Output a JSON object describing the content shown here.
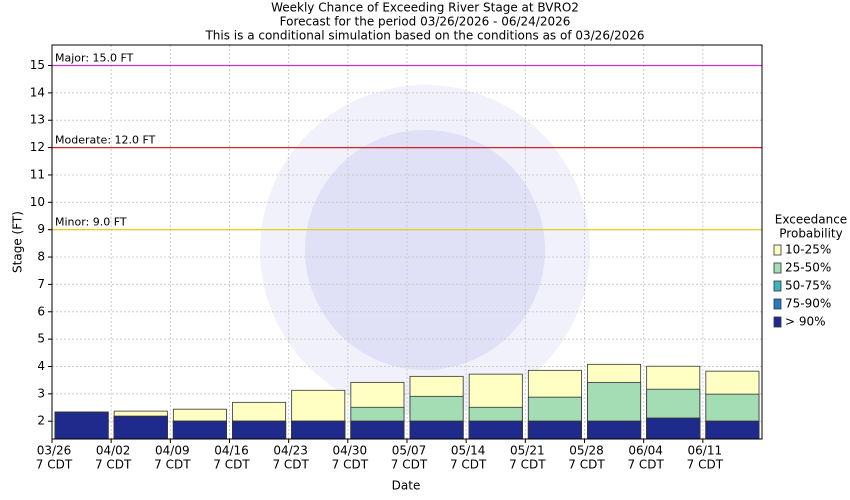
{
  "chart_data": {
    "type": "exceedance-bar",
    "title": "Weekly Chance of Exceeding River Stage at BVRO2",
    "subtitle": "Forecast for the period 03/26/2026 - 06/24/2026",
    "note": "This is a conditional simulation based on the conditions as of 03/26/2026",
    "x_label": "Date",
    "y_label": "Stage (FT)",
    "categories": [
      "03/26",
      "04/02",
      "04/09",
      "04/16",
      "04/23",
      "04/30",
      "05/07",
      "05/14",
      "05/21",
      "05/28",
      "06/04",
      "06/11"
    ],
    "category_sublabels": [
      "7 CDT",
      "7 CDT",
      "7 CDT",
      "7 CDT",
      "7 CDT",
      "7 CDT",
      "7 CDT",
      "7 CDT",
      "7 CDT",
      "7 CDT",
      "7 CDT",
      "7 CDT"
    ],
    "ylim": [
      1.35,
      15.75
    ],
    "yticks": [
      2,
      3,
      4,
      5,
      6,
      7,
      8,
      9,
      10,
      11,
      12,
      13,
      14,
      15
    ],
    "grid": true,
    "legend_title": [
      "Exceedance",
      "Probability"
    ],
    "series": [
      {
        "name": "10-25%",
        "color": "#ffffc4",
        "values": [
          2.33,
          2.37,
          2.44,
          2.69,
          3.13,
          3.42,
          3.64,
          3.72,
          3.86,
          4.08,
          4.01,
          3.83
        ]
      },
      {
        "name": "25-50%",
        "color": "#a4dcb4",
        "values": [
          2.33,
          2.18,
          2.0,
          2.0,
          2.0,
          2.51,
          2.91,
          2.51,
          2.88,
          3.42,
          3.17,
          2.99
        ]
      },
      {
        "name": "50-75%",
        "color": "#3cb4c4",
        "values": [
          2.33,
          2.18,
          2.0,
          2.0,
          2.0,
          2.0,
          2.0,
          2.0,
          2.0,
          2.0,
          2.11,
          2.0
        ]
      },
      {
        "name": "75-90%",
        "color": "#2878c0",
        "values": [
          2.33,
          2.18,
          2.0,
          2.0,
          2.0,
          2.0,
          2.0,
          2.0,
          2.0,
          2.0,
          2.11,
          2.0
        ]
      },
      {
        "name": "> 90%",
        "color": "#1e2a8c",
        "values": [
          2.33,
          2.18,
          2.0,
          2.0,
          2.0,
          2.0,
          2.0,
          2.0,
          2.0,
          2.0,
          2.11,
          2.0
        ]
      }
    ],
    "flood_levels": [
      {
        "label": "Major: 15.0 FT",
        "value": 15,
        "color": "#cc33cc"
      },
      {
        "label": "Moderate: 12.0 FT",
        "value": 12,
        "color": "#dd2222"
      },
      {
        "label": "Minor: 9.0 FT",
        "value": 9,
        "color": "#e8cc00"
      }
    ]
  }
}
